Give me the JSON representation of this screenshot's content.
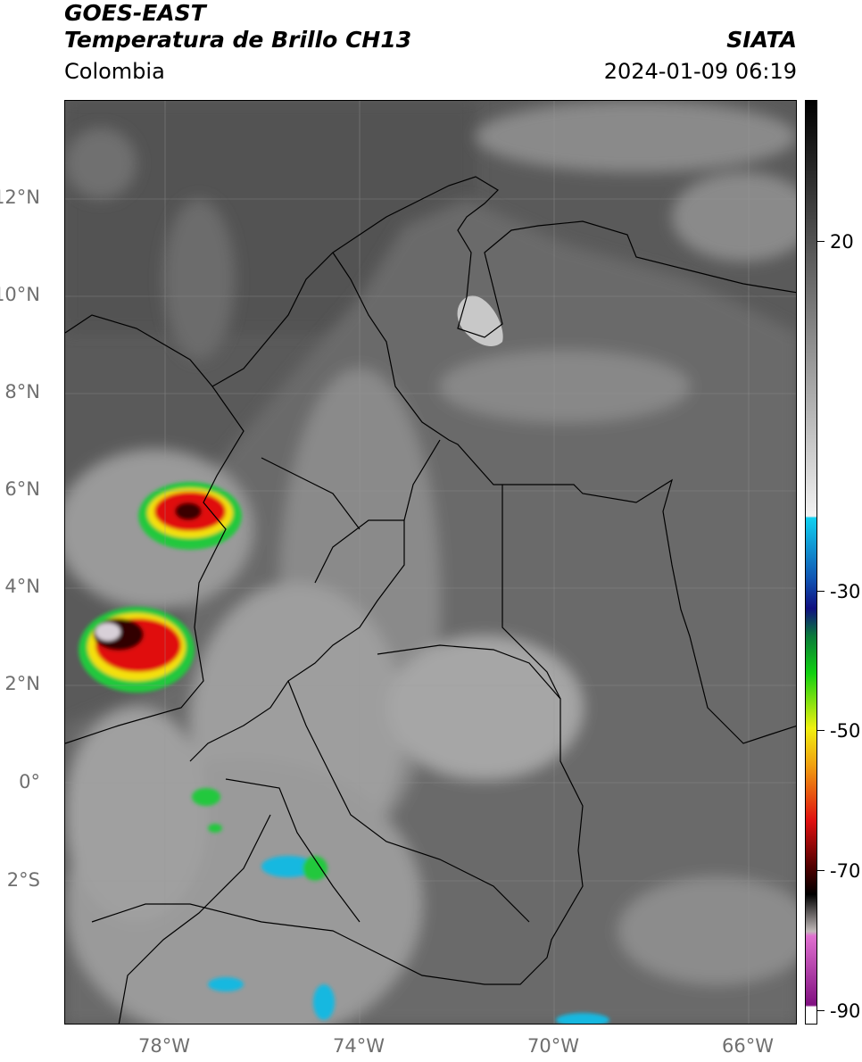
{
  "header": {
    "satellite": "GOES-EAST",
    "product": "Temperatura de Brillo CH13",
    "region": "Colombia",
    "source": "SIATA",
    "datetime": "2024-01-09 06:19"
  },
  "map": {
    "lat_labels": [
      "12°N",
      "10°N",
      "8°N",
      "6°N",
      "4°N",
      "2°N",
      "0°",
      "2°S"
    ],
    "lon_labels": [
      "78°W",
      "74°W",
      "70°W",
      "66°W"
    ],
    "colors": {
      "background_gray": "#5e5e5e",
      "cloud_light": "#d8d8d8",
      "storm_green": "#22c83c",
      "storm_red": "#e01010",
      "storm_yellow": "#f4e010",
      "cyan": "#16b8e0"
    }
  },
  "colorbar": {
    "labels": [
      "20",
      "-30",
      "-50",
      "-70",
      "-90"
    ],
    "unit_hint": ""
  }
}
